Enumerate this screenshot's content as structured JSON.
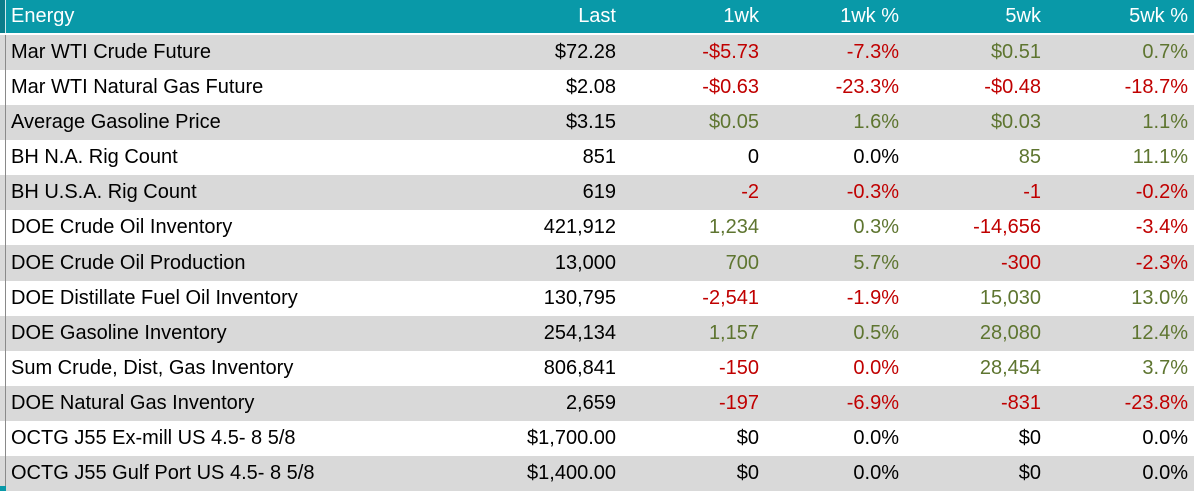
{
  "colors": {
    "header_background": "#0999A8",
    "header_text": "#FFFFFF",
    "stripe_gray": "#D9D9D9",
    "negative_red": "#C00000",
    "positive_green": "#5E7530",
    "neutral_black": "#000000"
  },
  "table": {
    "header": {
      "label": "Energy",
      "columns": [
        "Last",
        "1wk",
        "1wk %",
        "5wk",
        "5wk %"
      ]
    },
    "rows": [
      {
        "label": "Mar WTI Crude Future",
        "cells": [
          "$72.28",
          "-$5.73",
          "-7.3%",
          "$0.51",
          "0.7%"
        ],
        "tones": [
          "neutral",
          "neg",
          "neg",
          "pos",
          "pos"
        ]
      },
      {
        "label": "Mar WTI Natural Gas Future",
        "cells": [
          "$2.08",
          "-$0.63",
          "-23.3%",
          "-$0.48",
          "-18.7%"
        ],
        "tones": [
          "neutral",
          "neg",
          "neg",
          "neg",
          "neg"
        ]
      },
      {
        "label": "Average Gasoline Price",
        "cells": [
          "$3.15",
          "$0.05",
          "1.6%",
          "$0.03",
          "1.1%"
        ],
        "tones": [
          "neutral",
          "pos",
          "pos",
          "pos",
          "pos"
        ]
      },
      {
        "label": "BH N.A. Rig Count",
        "cells": [
          "851",
          "0",
          "0.0%",
          "85",
          "11.1%"
        ],
        "tones": [
          "neutral",
          "neutral",
          "neutral",
          "pos",
          "pos"
        ]
      },
      {
        "label": "BH U.S.A. Rig Count",
        "cells": [
          "619",
          "-2",
          "-0.3%",
          "-1",
          "-0.2%"
        ],
        "tones": [
          "neutral",
          "neg",
          "neg",
          "neg",
          "neg"
        ]
      },
      {
        "label": "DOE Crude Oil Inventory",
        "cells": [
          "421,912",
          "1,234",
          "0.3%",
          "-14,656",
          "-3.4%"
        ],
        "tones": [
          "neutral",
          "pos",
          "pos",
          "neg",
          "neg"
        ]
      },
      {
        "label": "DOE Crude Oil Production",
        "cells": [
          "13,000",
          "700",
          "5.7%",
          "-300",
          "-2.3%"
        ],
        "tones": [
          "neutral",
          "pos",
          "pos",
          "neg",
          "neg"
        ]
      },
      {
        "label": "DOE Distillate Fuel Oil Inventory",
        "cells": [
          "130,795",
          "-2,541",
          "-1.9%",
          "15,030",
          "13.0%"
        ],
        "tones": [
          "neutral",
          "neg",
          "neg",
          "pos",
          "pos"
        ]
      },
      {
        "label": "DOE Gasoline Inventory",
        "cells": [
          "254,134",
          "1,157",
          "0.5%",
          "28,080",
          "12.4%"
        ],
        "tones": [
          "neutral",
          "pos",
          "pos",
          "pos",
          "pos"
        ]
      },
      {
        "label": "Sum Crude, Dist, Gas Inventory",
        "cells": [
          "806,841",
          "-150",
          "0.0%",
          "28,454",
          "3.7%"
        ],
        "tones": [
          "neutral",
          "neg",
          "neg",
          "pos",
          "pos"
        ]
      },
      {
        "label": "DOE Natural Gas Inventory",
        "cells": [
          "2,659",
          "-197",
          "-6.9%",
          "-831",
          "-23.8%"
        ],
        "tones": [
          "neutral",
          "neg",
          "neg",
          "neg",
          "neg"
        ]
      },
      {
        "label": "OCTG J55 Ex-mill US 4.5- 8 5/8",
        "cells": [
          "$1,700.00",
          "$0",
          "0.0%",
          "$0",
          "0.0%"
        ],
        "tones": [
          "neutral",
          "neutral",
          "neutral",
          "neutral",
          "neutral"
        ]
      },
      {
        "label": "OCTG J55 Gulf Port US 4.5- 8 5/8",
        "cells": [
          "$1,400.00",
          "$0",
          "0.0%",
          "$0",
          "0.0%"
        ],
        "tones": [
          "neutral",
          "neutral",
          "neutral",
          "neutral",
          "neutral"
        ]
      }
    ]
  }
}
